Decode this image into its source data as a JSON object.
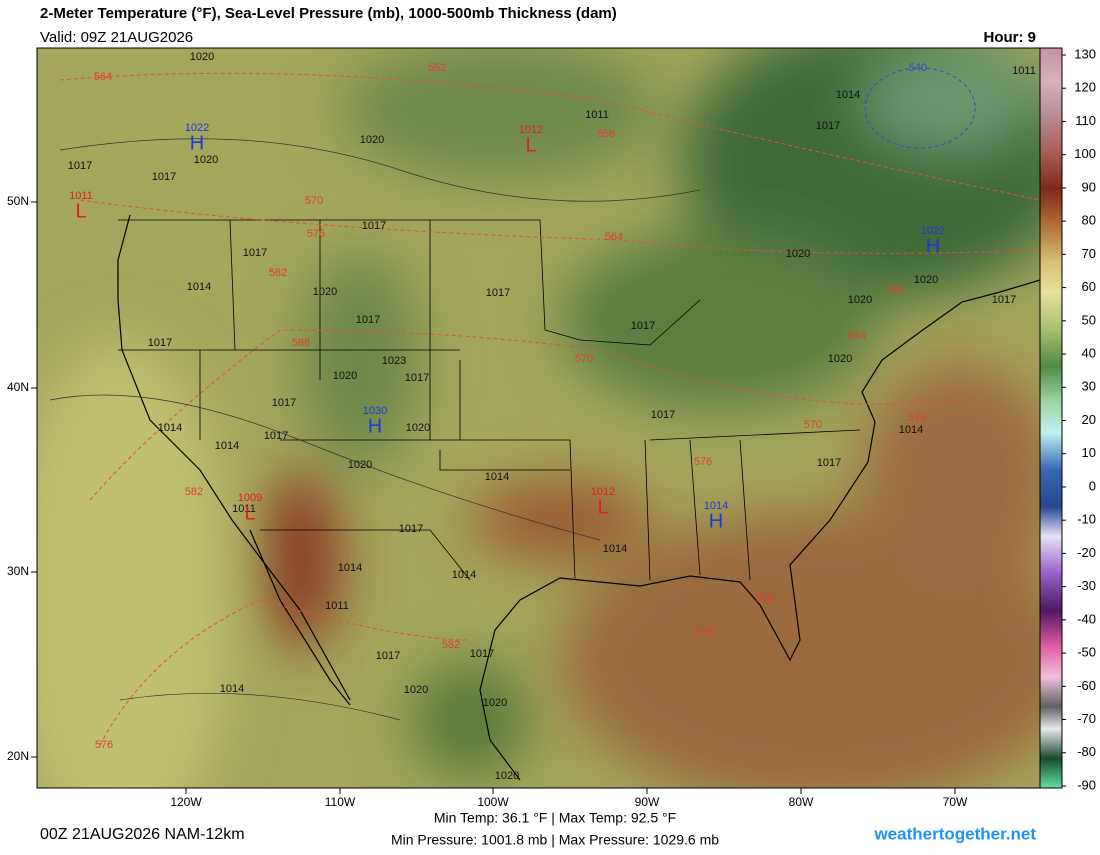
{
  "header": {
    "title": "2-Meter Temperature (°F), Sea-Level Pressure (mb), 1000-500mb Thickness (dam)",
    "valid": "Valid: 09Z 21AUG2026",
    "hour": "Hour: 9"
  },
  "colorbar": {
    "ticks": [
      130,
      120,
      110,
      100,
      90,
      80,
      70,
      60,
      50,
      40,
      30,
      20,
      10,
      0,
      -10,
      -20,
      -30,
      -40,
      -50,
      -60,
      -70,
      -80,
      -90
    ]
  },
  "map": {
    "lat_labels": [
      "50N",
      "40N",
      "30N",
      "20N"
    ],
    "lon_labels": [
      "120W",
      "110W",
      "100W",
      "90W",
      "80W",
      "70W"
    ],
    "isobar_labels": [
      "1020",
      "1020",
      "1011",
      "1011",
      "1014",
      "1017",
      "1017",
      "1017",
      "1020",
      "1017",
      "1017",
      "1014",
      "1020",
      "1017",
      "1017",
      "1017",
      "1023",
      "1020",
      "1017",
      "1017",
      "1017",
      "1014",
      "1014",
      "1017",
      "1020",
      "1020",
      "1017",
      "1014",
      "1011",
      "1017",
      "1014",
      "1017",
      "1014",
      "1020",
      "1020",
      "1020",
      "1020",
      "1017",
      "1014",
      "1014",
      "1011",
      "1017",
      "1017",
      "1020",
      "1020",
      "1014",
      "1020"
    ],
    "thickness_labels": [
      "564",
      "552",
      "558",
      "570",
      "576",
      "582",
      "588",
      "564",
      "570",
      "558",
      "564",
      "570",
      "576",
      "576",
      "582",
      "582",
      "576",
      "576",
      "576",
      "540"
    ],
    "pressure_centers": [
      {
        "symbol": "H",
        "value": "1022"
      },
      {
        "symbol": "L",
        "value": "1012"
      },
      {
        "symbol": "L",
        "value": "1011"
      },
      {
        "symbol": "H",
        "value": "1022"
      },
      {
        "symbol": "H",
        "value": "1030"
      },
      {
        "symbol": "L",
        "value": "1009"
      },
      {
        "symbol": "L",
        "value": "1012"
      },
      {
        "symbol": "H",
        "value": "1014"
      }
    ]
  },
  "footer": {
    "run": "00Z 21AUG2026 NAM-12km",
    "min_max_temp": "Min Temp:  36.1 °F | Max Temp:  92.5 °F",
    "min_max_pressure": "Min Pressure: 1001.8 mb | Max Pressure: 1029.6 mb",
    "site": "weathertogether.net"
  }
}
